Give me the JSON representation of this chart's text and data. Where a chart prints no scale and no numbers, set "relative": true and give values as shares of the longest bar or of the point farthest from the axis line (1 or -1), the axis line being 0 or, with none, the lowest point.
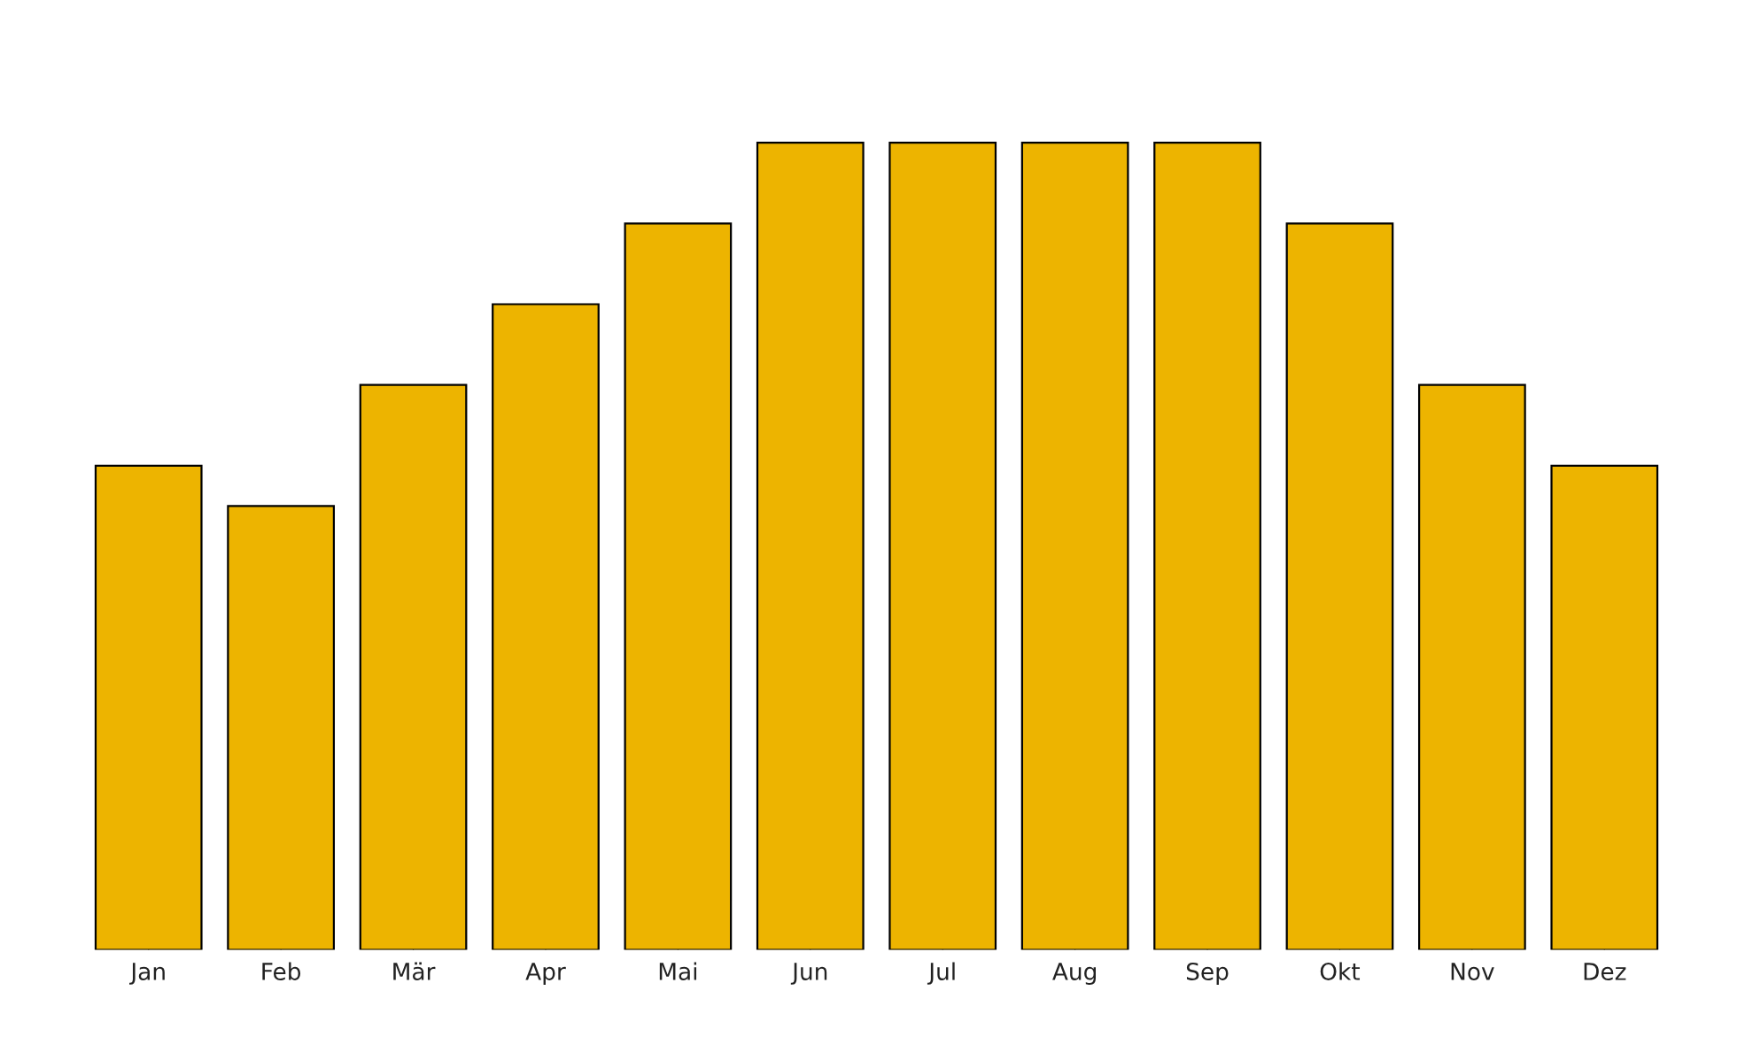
{
  "chart_data": {
    "type": "bar",
    "relative": true,
    "categories": [
      "Jan",
      "Feb",
      "Mär",
      "Apr",
      "Mai",
      "Jun",
      "Jul",
      "Aug",
      "Sep",
      "Okt",
      "Nov",
      "Dez"
    ],
    "values": [
      0.6,
      0.55,
      0.7,
      0.8,
      0.9,
      1,
      1,
      1,
      1,
      0.9,
      0.7,
      0.6
    ],
    "color": "#edb400",
    "grid": false,
    "legend": false
  }
}
